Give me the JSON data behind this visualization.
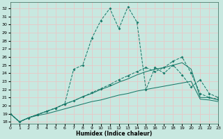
{
  "xlabel": "Humidex (Indice chaleur)",
  "xlim": [
    0,
    23
  ],
  "ylim": [
    17.8,
    32.8
  ],
  "yticks": [
    18,
    19,
    20,
    21,
    22,
    23,
    24,
    25,
    26,
    27,
    28,
    29,
    30,
    31,
    32
  ],
  "xticks": [
    0,
    1,
    2,
    3,
    4,
    5,
    6,
    7,
    8,
    9,
    10,
    11,
    12,
    13,
    14,
    15,
    16,
    17,
    18,
    19,
    20,
    21,
    22,
    23
  ],
  "bg_color": "#c8e8e0",
  "grid_color": "#e8c8c8",
  "line_color": "#1a7a6a",
  "line1_y": [
    19.0,
    18.0,
    18.5,
    18.8,
    19.0,
    19.3,
    19.6,
    19.9,
    20.2,
    20.5,
    20.7,
    21.0,
    21.3,
    21.5,
    21.8,
    22.0,
    22.2,
    22.4,
    22.6,
    22.8,
    23.0,
    20.8,
    20.7,
    20.5
  ],
  "line2_y": [
    19.0,
    18.0,
    18.5,
    18.9,
    19.3,
    19.7,
    20.2,
    20.6,
    21.1,
    21.5,
    22.0,
    22.4,
    22.9,
    23.3,
    23.8,
    24.2,
    24.5,
    24.7,
    25.0,
    25.3,
    24.5,
    21.0,
    21.0,
    20.7
  ],
  "line3_y": [
    19.0,
    18.0,
    18.5,
    18.9,
    19.3,
    19.7,
    20.2,
    24.5,
    25.0,
    28.3,
    30.5,
    32.0,
    29.5,
    32.2,
    30.3,
    22.0,
    24.7,
    24.0,
    25.0,
    23.8,
    22.3,
    23.2,
    21.5,
    21.0
  ],
  "line4_y": [
    19.0,
    18.0,
    18.5,
    18.9,
    19.3,
    19.7,
    20.2,
    20.6,
    21.1,
    21.6,
    22.1,
    22.6,
    23.2,
    23.7,
    24.2,
    24.7,
    24.2,
    24.7,
    25.5,
    26.0,
    24.0,
    21.5,
    21.0,
    20.8
  ]
}
